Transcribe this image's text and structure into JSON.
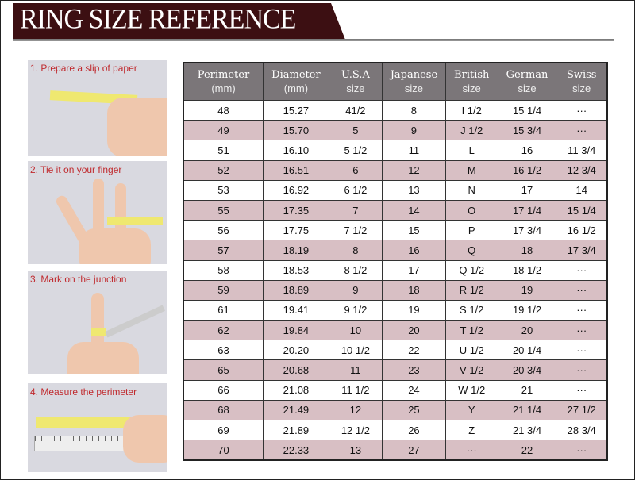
{
  "header": {
    "title": "RING SIZE REFERENCE",
    "banner_color": "#3c0f12"
  },
  "steps": [
    {
      "label": "1. Prepare a slip of paper"
    },
    {
      "label": "2. Tie it on your finger"
    },
    {
      "label": "3. Mark on the junction"
    },
    {
      "label": "4. Measure the perimeter"
    }
  ],
  "table": {
    "header_color": "#7b7679",
    "stripe_color": "#d8bfc4",
    "columns": [
      {
        "title": "Perimeter",
        "sub": "(mm)"
      },
      {
        "title": "Diameter",
        "sub": "(mm)"
      },
      {
        "title": "U.S.A",
        "sub": "size"
      },
      {
        "title": "Japanese",
        "sub": "size"
      },
      {
        "title": "British",
        "sub": "size"
      },
      {
        "title": "German",
        "sub": "size"
      },
      {
        "title": "Swiss",
        "sub": "size"
      }
    ],
    "rows": [
      [
        "48",
        "15.27",
        "41/2",
        "8",
        "I 1/2",
        "15 1/4",
        "···"
      ],
      [
        "49",
        "15.70",
        "5",
        "9",
        "J 1/2",
        "15 3/4",
        "···"
      ],
      [
        "51",
        "16.10",
        "5 1/2",
        "11",
        "L",
        "16",
        "11 3/4"
      ],
      [
        "52",
        "16.51",
        "6",
        "12",
        "M",
        "16 1/2",
        "12 3/4"
      ],
      [
        "53",
        "16.92",
        "6 1/2",
        "13",
        "N",
        "17",
        "14"
      ],
      [
        "55",
        "17.35",
        "7",
        "14",
        "O",
        "17 1/4",
        "15 1/4"
      ],
      [
        "56",
        "17.75",
        "7 1/2",
        "15",
        "P",
        "17 3/4",
        "16 1/2"
      ],
      [
        "57",
        "18.19",
        "8",
        "16",
        "Q",
        "18",
        "17 3/4"
      ],
      [
        "58",
        "18.53",
        "8 1/2",
        "17",
        "Q  1/2",
        "18 1/2",
        "···"
      ],
      [
        "59",
        "18.89",
        "9",
        "18",
        "R 1/2",
        "19",
        "···"
      ],
      [
        "61",
        "19.41",
        "9 1/2",
        "19",
        "S 1/2",
        "19 1/2",
        "···"
      ],
      [
        "62",
        "19.84",
        "10",
        "20",
        "T 1/2",
        "20",
        "···"
      ],
      [
        "63",
        "20.20",
        "10 1/2",
        "22",
        "U 1/2",
        "20 1/4",
        "···"
      ],
      [
        "65",
        "20.68",
        "11",
        "23",
        "V 1/2",
        "20 3/4",
        "···"
      ],
      [
        "66",
        "21.08",
        "11 1/2",
        "24",
        "W 1/2",
        "21",
        "···"
      ],
      [
        "68",
        "21.49",
        "12",
        "25",
        "Y",
        "21 1/4",
        "27 1/2"
      ],
      [
        "69",
        "21.89",
        "12 1/2",
        "26",
        "Z",
        "21 3/4",
        "28 3/4"
      ],
      [
        "70",
        "22.33",
        "13",
        "27",
        "···",
        "22",
        "···"
      ]
    ]
  }
}
